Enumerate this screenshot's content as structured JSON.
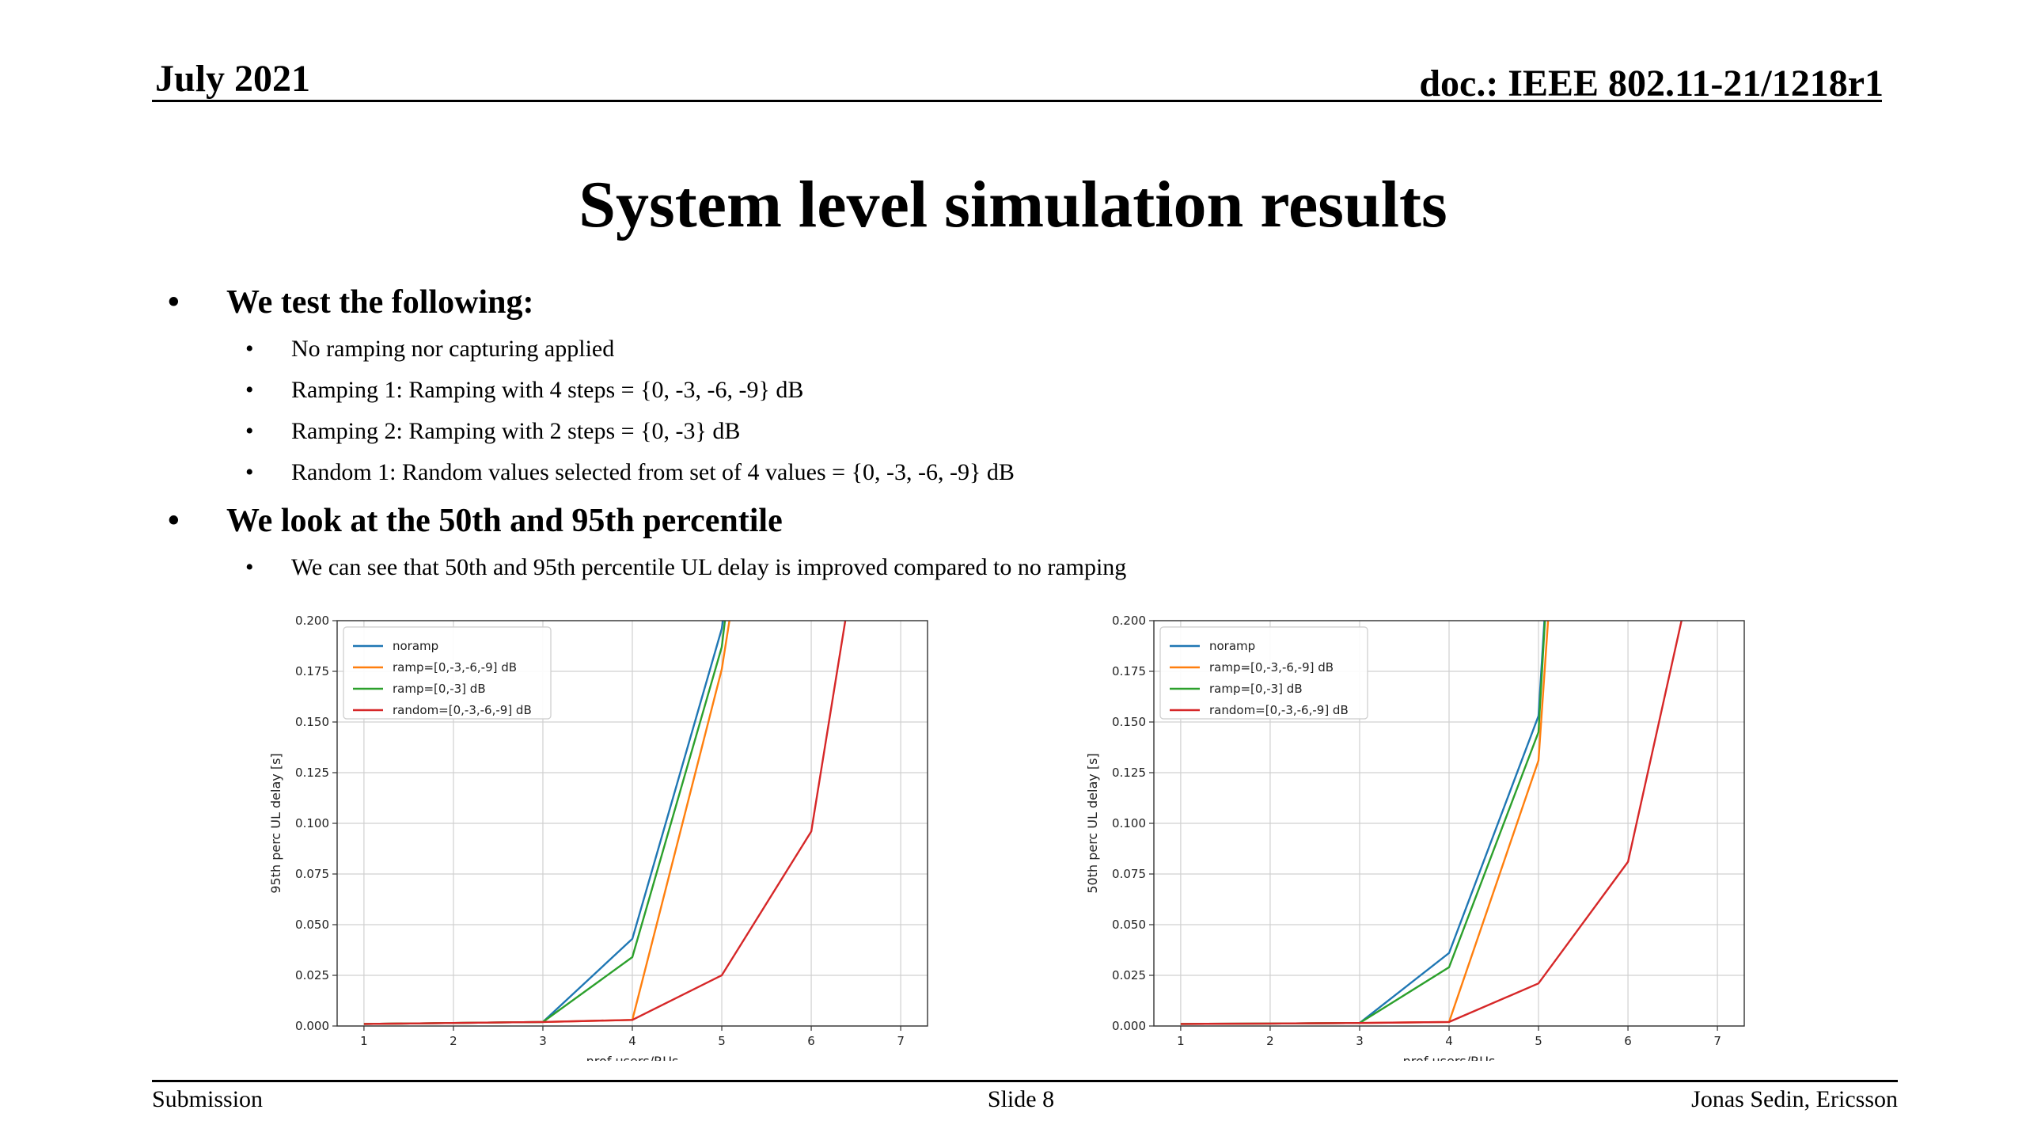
{
  "header": {
    "date": "July 2021",
    "doc": "doc.: IEEE 802.11-21/1218r1"
  },
  "title": "System level simulation results",
  "bullets": [
    {
      "text": "We test the following:",
      "sub": [
        "No ramping nor capturing applied",
        "Ramping 1: Ramping with 4 steps = {0, -3, -6, -9} dB",
        "Ramping 2: Ramping with 2 steps = {0, -3} dB",
        "Random 1: Random values selected from set of 4 values = {0, -3, -6, -9} dB"
      ]
    },
    {
      "text": "We look at the 50th and 95th percentile",
      "sub": [
        "We can see that 50th and 95th percentile UL delay is improved compared to no ramping"
      ]
    }
  ],
  "footer": {
    "left": "Submission",
    "center": "Slide 8",
    "right": "Jonas Sedin, Ericsson"
  },
  "chart_data": [
    {
      "type": "line",
      "xlabel": "nrof users/RUs",
      "ylabel": "95th perc UL delay [s]",
      "xlim": [
        0.7,
        7.3
      ],
      "ylim": [
        0,
        0.2
      ],
      "xticks": [
        1,
        2,
        3,
        4,
        5,
        6,
        7
      ],
      "yticks": [
        "0.000",
        "0.025",
        "0.050",
        "0.075",
        "0.100",
        "0.125",
        "0.150",
        "0.175",
        "0.200"
      ],
      "grid": true,
      "legend_position": "upper-left",
      "series": [
        {
          "name": "noramp",
          "color": "#1f77b4",
          "x": [
            1,
            2,
            3,
            4,
            5,
            5.2
          ],
          "y": [
            0.001,
            0.0015,
            0.002,
            0.043,
            0.196,
            0.26
          ]
        },
        {
          "name": "ramp=[0,-3,-6,-9] dB",
          "color": "#ff7f0e",
          "x": [
            1,
            2,
            3,
            4,
            5,
            5.3
          ],
          "y": [
            0.001,
            0.0015,
            0.002,
            0.003,
            0.176,
            0.26
          ]
        },
        {
          "name": "ramp=[0,-3] dB",
          "color": "#2ca02c",
          "x": [
            1,
            2,
            3,
            4,
            5,
            5.2
          ],
          "y": [
            0.001,
            0.0015,
            0.002,
            0.034,
            0.187,
            0.26
          ]
        },
        {
          "name": "random=[0,-3,-6,-9] dB",
          "color": "#d62728",
          "x": [
            1,
            2,
            3,
            4,
            5,
            6,
            6.6
          ],
          "y": [
            0.001,
            0.0015,
            0.002,
            0.003,
            0.025,
            0.096,
            0.26
          ]
        }
      ]
    },
    {
      "type": "line",
      "xlabel": "nrof users/RUs",
      "ylabel": "50th perc UL delay [s]",
      "xlim": [
        0.7,
        7.3
      ],
      "ylim": [
        0,
        0.2
      ],
      "xticks": [
        1,
        2,
        3,
        4,
        5,
        6,
        7
      ],
      "yticks": [
        "0.000",
        "0.025",
        "0.050",
        "0.075",
        "0.100",
        "0.125",
        "0.150",
        "0.175",
        "0.200"
      ],
      "grid": true,
      "legend_position": "upper-left",
      "series": [
        {
          "name": "noramp",
          "color": "#1f77b4",
          "x": [
            1,
            2,
            3,
            4,
            5,
            5.15
          ],
          "y": [
            0.001,
            0.0012,
            0.0015,
            0.036,
            0.153,
            0.26
          ]
        },
        {
          "name": "ramp=[0,-3,-6,-9] dB",
          "color": "#ff7f0e",
          "x": [
            1,
            2,
            3,
            4,
            5,
            5.2
          ],
          "y": [
            0.001,
            0.0012,
            0.0015,
            0.002,
            0.131,
            0.26
          ]
        },
        {
          "name": "ramp=[0,-3] dB",
          "color": "#2ca02c",
          "x": [
            1,
            2,
            3,
            4,
            5,
            5.15
          ],
          "y": [
            0.001,
            0.0012,
            0.0015,
            0.029,
            0.145,
            0.26
          ]
        },
        {
          "name": "random=[0,-3,-6,-9] dB",
          "color": "#d62728",
          "x": [
            1,
            2,
            3,
            4,
            5,
            6,
            6.9
          ],
          "y": [
            0.001,
            0.0012,
            0.0015,
            0.002,
            0.021,
            0.081,
            0.26
          ]
        }
      ]
    }
  ]
}
